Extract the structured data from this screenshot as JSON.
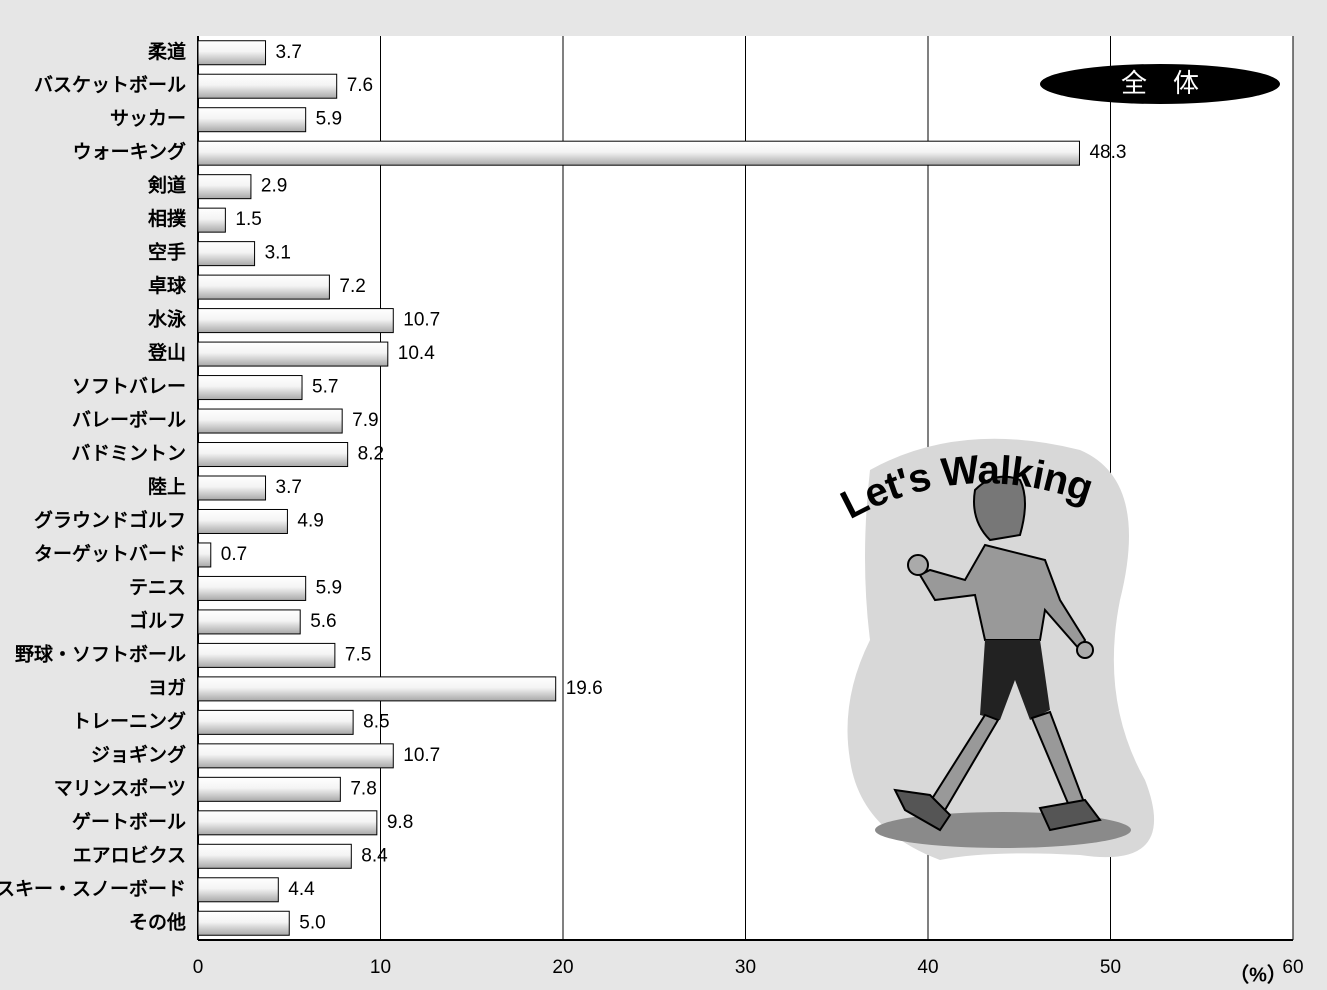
{
  "chart_data": {
    "type": "bar",
    "orientation": "horizontal",
    "categories": [
      "柔道",
      "バスケットボール",
      "サッカー",
      "ウォーキング",
      "剣道",
      "相撲",
      "空手",
      "卓球",
      "水泳",
      "登山",
      "ソフトバレー",
      "バレーボール",
      "バドミントン",
      "陸上",
      "グラウンドゴルフ",
      "ターゲットバード",
      "テニス",
      "ゴルフ",
      "野球・ソフトボール",
      "ヨガ",
      "トレーニング",
      "ジョギング",
      "マリンスポーツ",
      "ゲートボール",
      "エアロビクス",
      "スキー・スノーボード",
      "その他"
    ],
    "values": [
      3.7,
      7.6,
      5.9,
      48.3,
      2.9,
      1.5,
      3.1,
      7.2,
      10.7,
      10.4,
      5.7,
      7.9,
      8.2,
      3.7,
      4.9,
      0.7,
      5.9,
      5.6,
      7.5,
      19.6,
      8.5,
      10.7,
      7.8,
      9.8,
      8.4,
      4.4,
      5
    ],
    "value_labels": [
      "3.7",
      "7.6",
      "5.9",
      "48.3",
      "2.9",
      "1.5",
      "3.1",
      "7.2",
      "10.7",
      "10.4",
      "5.7",
      "7.9",
      "8.2",
      "3.7",
      "4.9",
      "0.7",
      "5.9",
      "5.6",
      "7.5",
      "19.6",
      "8.5",
      "10.7",
      "7.8",
      "9.8",
      "8.4",
      "4.4",
      "5.0"
    ],
    "color": "#a8a8a8",
    "xlim": [
      0,
      60
    ],
    "xticks": [
      0,
      10,
      20,
      30,
      40,
      50,
      60
    ],
    "grid": true,
    "x_label": "（%）",
    "badge": "全　体",
    "illustration_caption": "Let's Walking"
  }
}
